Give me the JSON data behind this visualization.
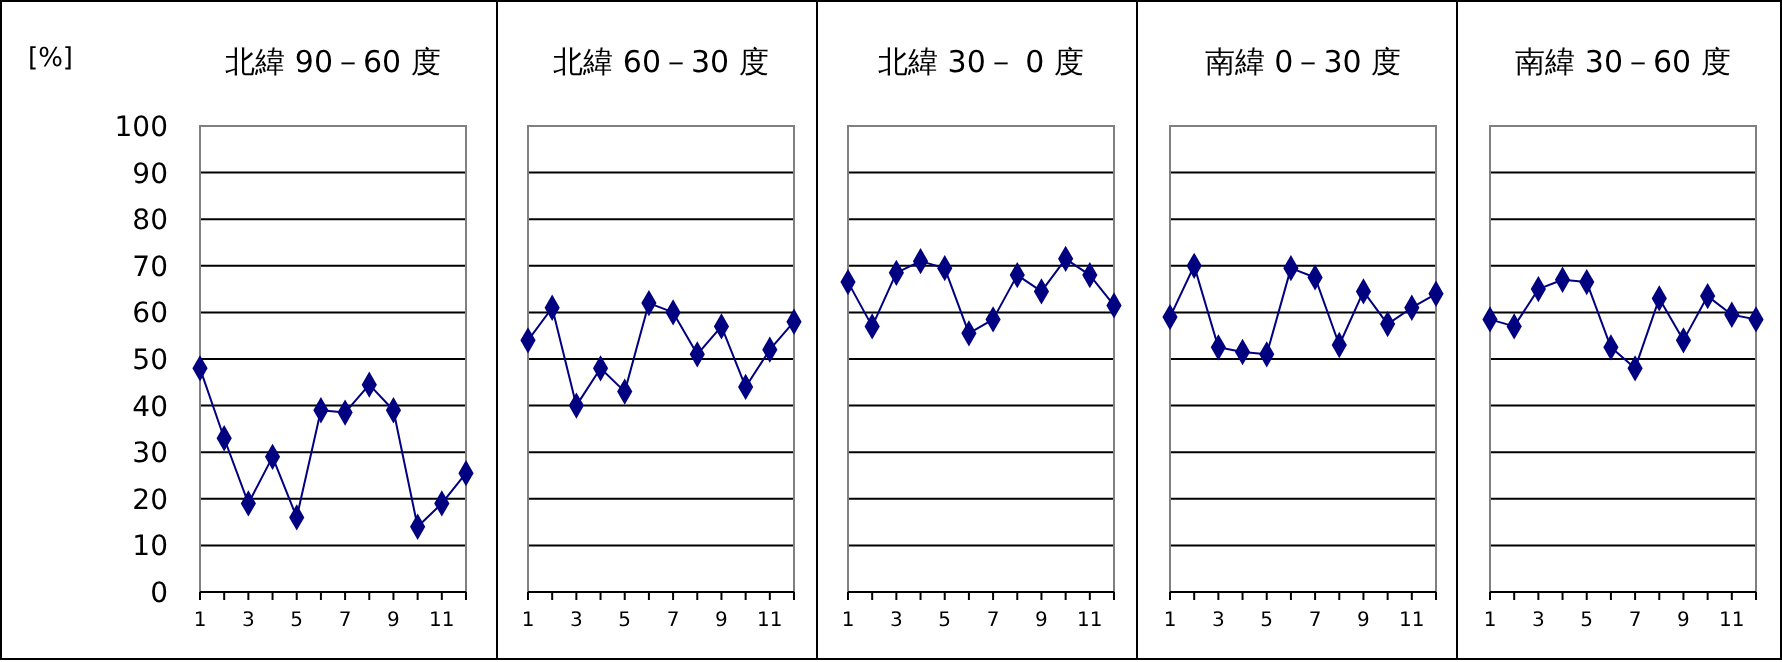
{
  "chart_data": [
    {
      "type": "line",
      "title": "北緯 90－60 度",
      "ylabel": "[%]",
      "x": [
        1,
        2,
        3,
        4,
        5,
        6,
        7,
        8,
        9,
        10,
        11,
        12
      ],
      "xlim": [
        1,
        12
      ],
      "xticks": [
        1,
        {
          "value": 2,
          "label": null
        },
        3,
        {
          "value": 4,
          "label": null
        },
        5,
        {
          "value": 6,
          "label": null
        },
        7,
        {
          "value": 8,
          "label": null
        },
        9,
        {
          "value": 10,
          "label": null
        },
        11,
        {
          "value": 12,
          "label": null
        }
      ],
      "ylim": [
        0,
        100
      ],
      "yticks": [
        0,
        10,
        20,
        30,
        40,
        50,
        60,
        70,
        80,
        90,
        100
      ],
      "grid": "y",
      "marker": "diamond",
      "line_style": "solid",
      "series": [
        {
          "color": "#000080",
          "values": [
            48,
            33,
            19,
            29,
            16,
            39,
            38.5,
            44.5,
            39,
            14,
            19,
            25.5
          ]
        }
      ]
    },
    {
      "type": "line",
      "title": "北緯 60－30 度",
      "x": [
        1,
        2,
        3,
        4,
        5,
        6,
        7,
        8,
        9,
        10,
        11,
        12
      ],
      "xlim": [
        1,
        12
      ],
      "xticks": [
        1,
        {
          "value": 2,
          "label": null
        },
        3,
        {
          "value": 4,
          "label": null
        },
        5,
        {
          "value": 6,
          "label": null
        },
        7,
        {
          "value": 8,
          "label": null
        },
        9,
        {
          "value": 10,
          "label": null
        },
        11,
        {
          "value": 12,
          "label": null
        }
      ],
      "ylim": [
        0,
        100
      ],
      "yticks": [
        0,
        10,
        20,
        30,
        40,
        50,
        60,
        70,
        80,
        90,
        100
      ],
      "tick_labels": "x",
      "grid": "y",
      "marker": "diamond",
      "line_style": "solid",
      "series": [
        {
          "color": "#000080",
          "values": [
            54,
            61,
            40,
            48,
            43,
            62,
            60,
            51,
            57,
            44,
            52,
            58
          ]
        }
      ]
    },
    {
      "type": "line",
      "title": "北緯 30－ 0 度",
      "x": [
        1,
        2,
        3,
        4,
        5,
        6,
        7,
        8,
        9,
        10,
        11,
        12
      ],
      "xlim": [
        1,
        12
      ],
      "xticks": [
        1,
        {
          "value": 2,
          "label": null
        },
        3,
        {
          "value": 4,
          "label": null
        },
        5,
        {
          "value": 6,
          "label": null
        },
        7,
        {
          "value": 8,
          "label": null
        },
        9,
        {
          "value": 10,
          "label": null
        },
        11,
        {
          "value": 12,
          "label": null
        }
      ],
      "ylim": [
        0,
        100
      ],
      "yticks": [
        0,
        10,
        20,
        30,
        40,
        50,
        60,
        70,
        80,
        90,
        100
      ],
      "tick_labels": "x",
      "grid": "y",
      "marker": "diamond",
      "line_style": "solid",
      "series": [
        {
          "color": "#000080",
          "values": [
            66.5,
            57,
            68.5,
            71,
            69.5,
            55.5,
            58.5,
            68,
            64.5,
            71.5,
            68,
            61.5
          ]
        }
      ]
    },
    {
      "type": "line",
      "title": "南緯  0－30 度",
      "x": [
        1,
        2,
        3,
        4,
        5,
        6,
        7,
        8,
        9,
        10,
        11,
        12
      ],
      "xlim": [
        1,
        12
      ],
      "xticks": [
        1,
        {
          "value": 2,
          "label": null
        },
        3,
        {
          "value": 4,
          "label": null
        },
        5,
        {
          "value": 6,
          "label": null
        },
        7,
        {
          "value": 8,
          "label": null
        },
        9,
        {
          "value": 10,
          "label": null
        },
        11,
        {
          "value": 12,
          "label": null
        }
      ],
      "ylim": [
        0,
        100
      ],
      "yticks": [
        0,
        10,
        20,
        30,
        40,
        50,
        60,
        70,
        80,
        90,
        100
      ],
      "tick_labels": "x",
      "grid": "y",
      "marker": "diamond",
      "line_style": "solid",
      "series": [
        {
          "color": "#000080",
          "values": [
            59,
            70,
            52.5,
            51.5,
            51,
            69.5,
            67.5,
            53,
            64.5,
            57.5,
            61,
            64
          ]
        }
      ]
    },
    {
      "type": "line",
      "title": "南緯 30－60 度",
      "x": [
        1,
        2,
        3,
        4,
        5,
        6,
        7,
        8,
        9,
        10,
        11,
        12
      ],
      "xlim": [
        1,
        12
      ],
      "xticks": [
        1,
        {
          "value": 2,
          "label": null
        },
        3,
        {
          "value": 4,
          "label": null
        },
        5,
        {
          "value": 6,
          "label": null
        },
        7,
        {
          "value": 8,
          "label": null
        },
        9,
        {
          "value": 10,
          "label": null
        },
        11,
        {
          "value": 12,
          "label": null
        }
      ],
      "ylim": [
        0,
        100
      ],
      "yticks": [
        0,
        10,
        20,
        30,
        40,
        50,
        60,
        70,
        80,
        90,
        100
      ],
      "tick_labels": "x",
      "grid": "y",
      "marker": "diamond",
      "line_style": "solid",
      "series": [
        {
          "color": "#000080",
          "values": [
            58.5,
            57,
            65,
            67,
            66.5,
            52.5,
            48,
            63,
            54,
            63.5,
            59.5,
            58.5
          ]
        }
      ]
    }
  ]
}
